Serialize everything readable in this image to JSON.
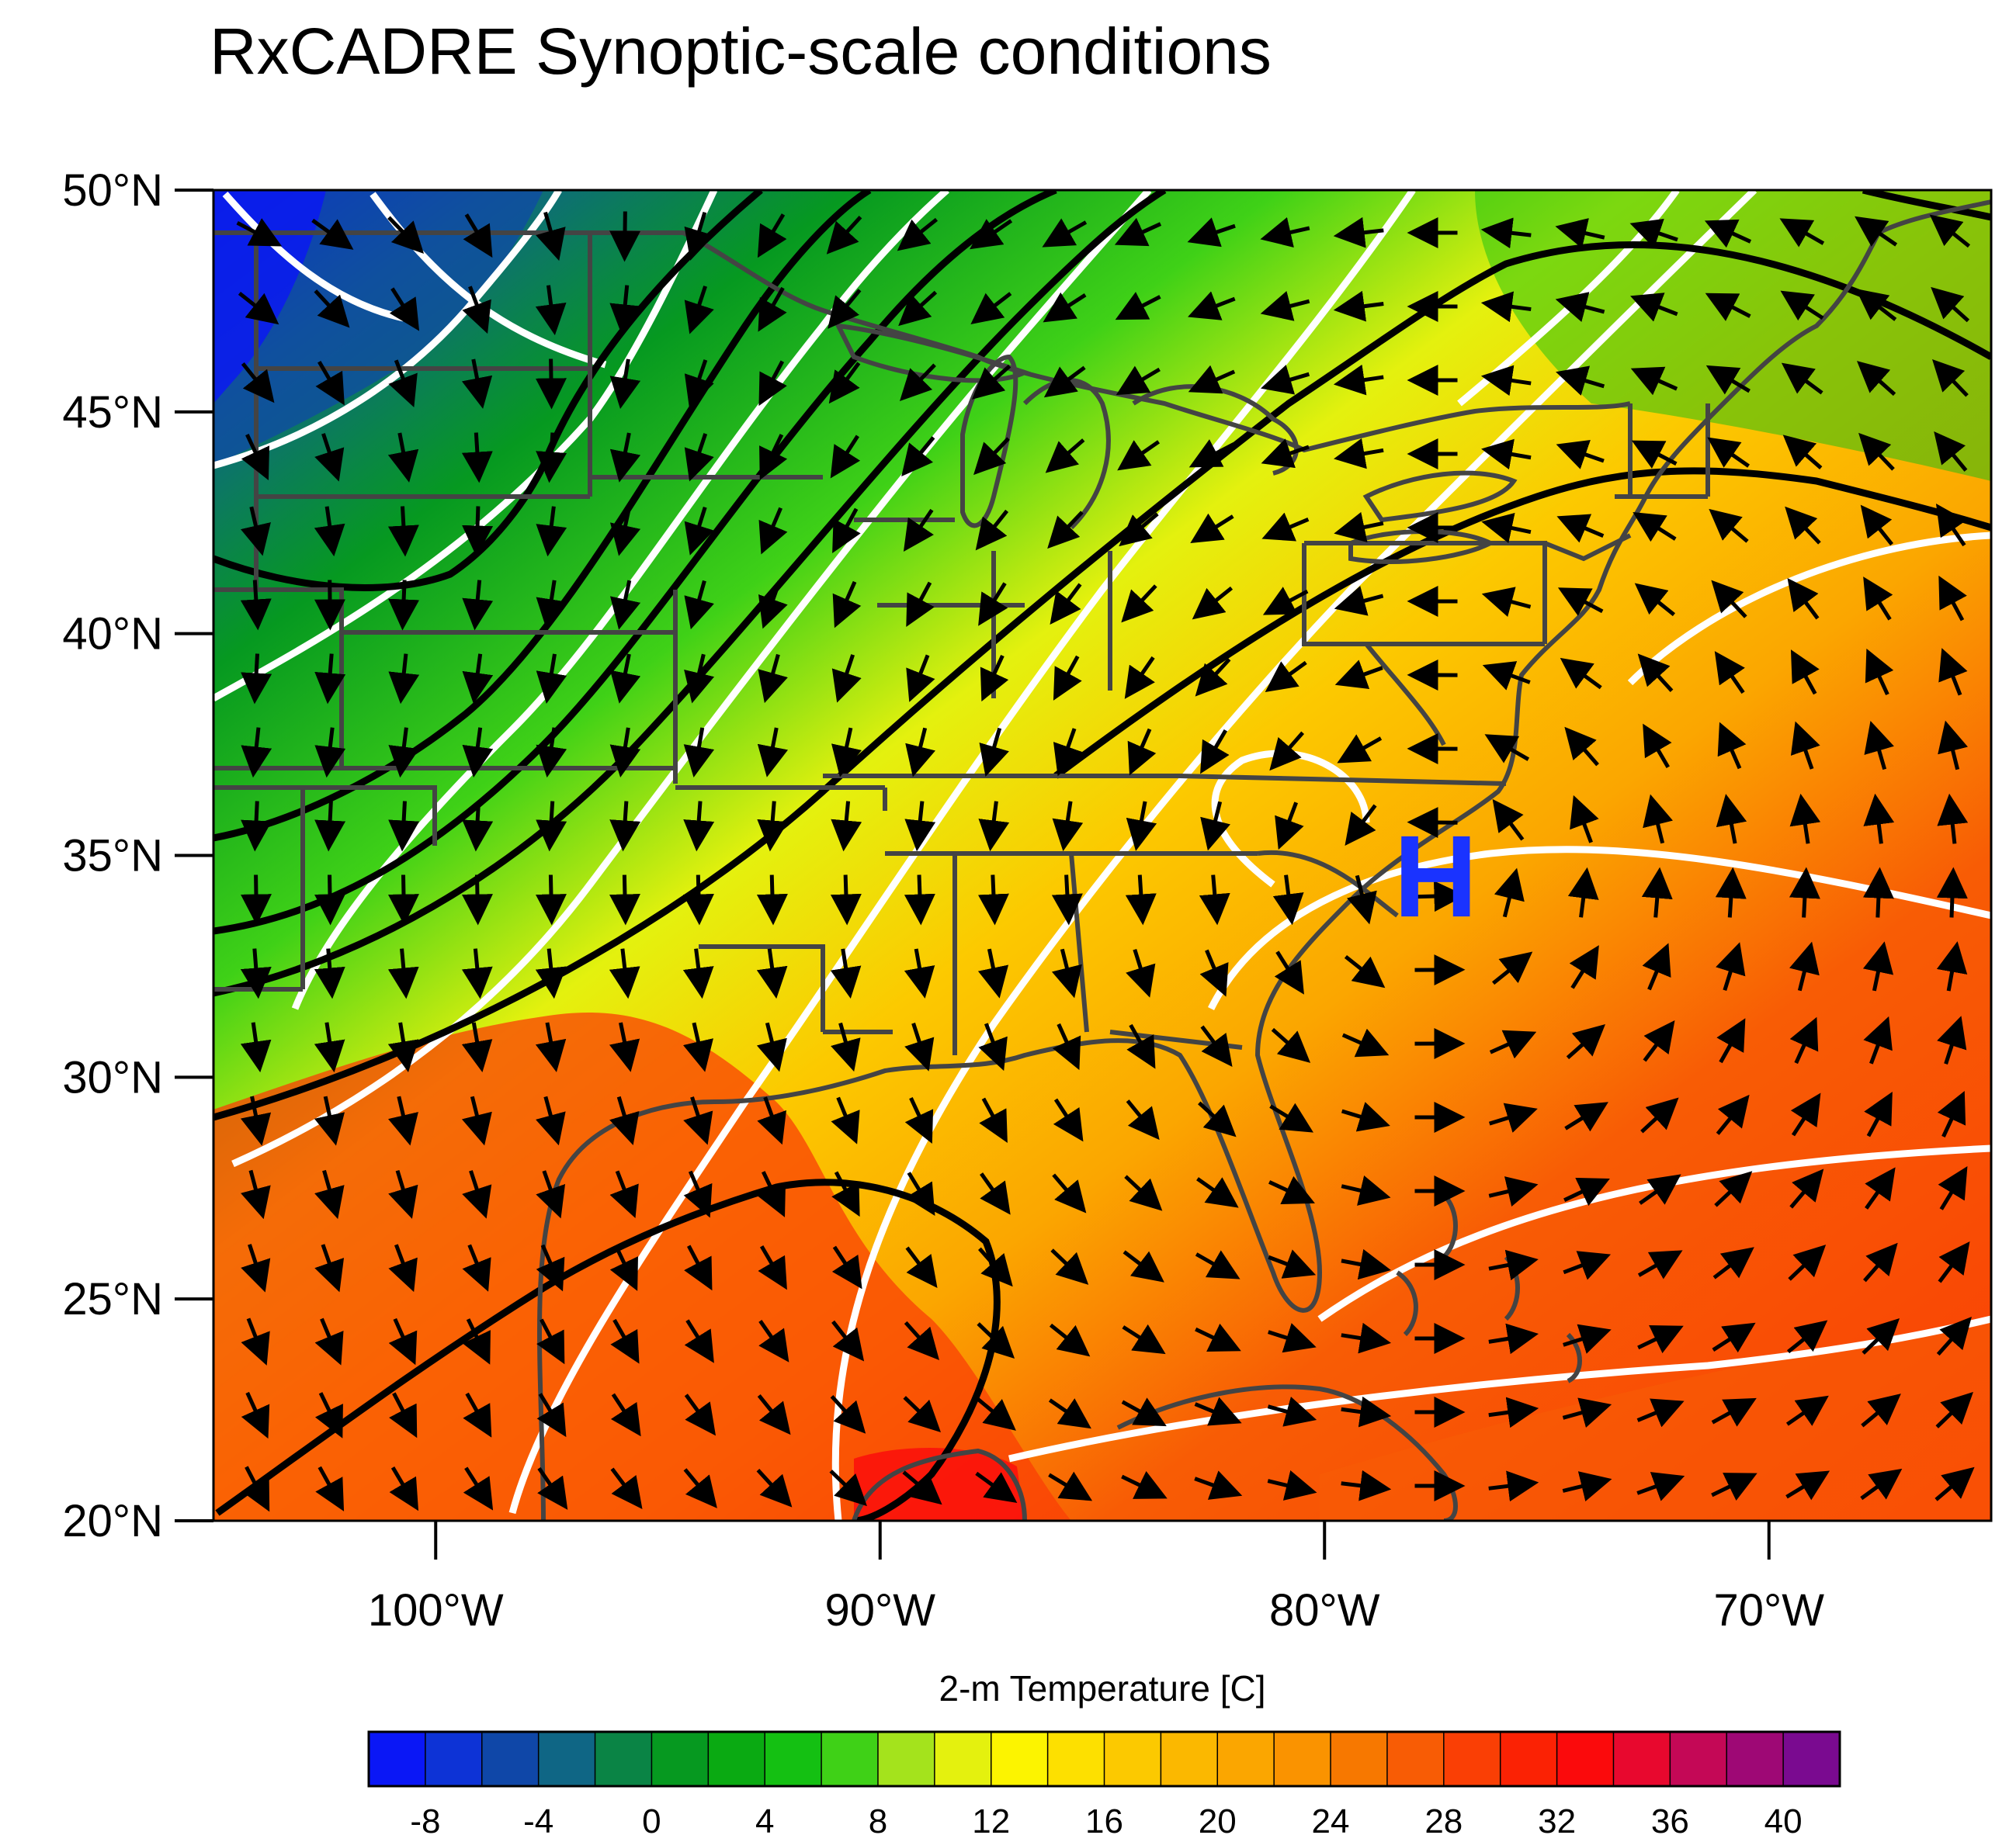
{
  "title": "RxCADRE Synoptic-scale conditions",
  "map": {
    "lat_range": [
      20,
      50
    ],
    "lon_range": [
      -105,
      -65
    ],
    "lat_labels": [
      "50°N",
      "45°N",
      "40°N",
      "35°N",
      "30°N",
      "25°N",
      "20°N"
    ],
    "lat_values": [
      50,
      45,
      40,
      35,
      30,
      25,
      20
    ],
    "lon_labels": [
      "100°W",
      "90°W",
      "80°W",
      "70°W"
    ],
    "lon_values": [
      -100,
      -90,
      -80,
      -70
    ],
    "pressure_marker": {
      "label": "H",
      "lat": 34.5,
      "lon": -77.5,
      "color": "#1a33ff"
    },
    "layers": {
      "fill": "2-m temperature shading",
      "white_contours": "isotherms",
      "black_contours": "geopotential height",
      "arrows": "wind vectors",
      "gray_lines": "coastlines and state borders"
    }
  },
  "colorbar": {
    "title": "2-m Temperature [C]",
    "levels": [
      -10,
      -8,
      -6,
      -4,
      -2,
      0,
      2,
      4,
      6,
      8,
      10,
      12,
      14,
      16,
      18,
      20,
      22,
      24,
      26,
      28,
      30,
      32,
      34,
      36,
      38,
      40,
      42
    ],
    "tick_labels": [
      "-8",
      "-4",
      "0",
      "4",
      "8",
      "12",
      "16",
      "20",
      "24",
      "28",
      "32",
      "36",
      "40"
    ],
    "tick_values": [
      -8,
      -4,
      0,
      4,
      8,
      12,
      16,
      20,
      24,
      28,
      32,
      36,
      40
    ],
    "colors": [
      "#0a17f6",
      "#0d33d6",
      "#0f47a8",
      "#0f6685",
      "#0a8445",
      "#069920",
      "#0aaa12",
      "#14c012",
      "#3fd117",
      "#a4e31c",
      "#e4f10e",
      "#fcf400",
      "#fde000",
      "#fcc900",
      "#fbb800",
      "#fba600",
      "#fa9300",
      "#f77800",
      "#f85c05",
      "#fa3f05",
      "#fb2204",
      "#fb0a0c",
      "#e8082e",
      "#c40856",
      "#9e0875",
      "#7a0a90"
    ]
  }
}
